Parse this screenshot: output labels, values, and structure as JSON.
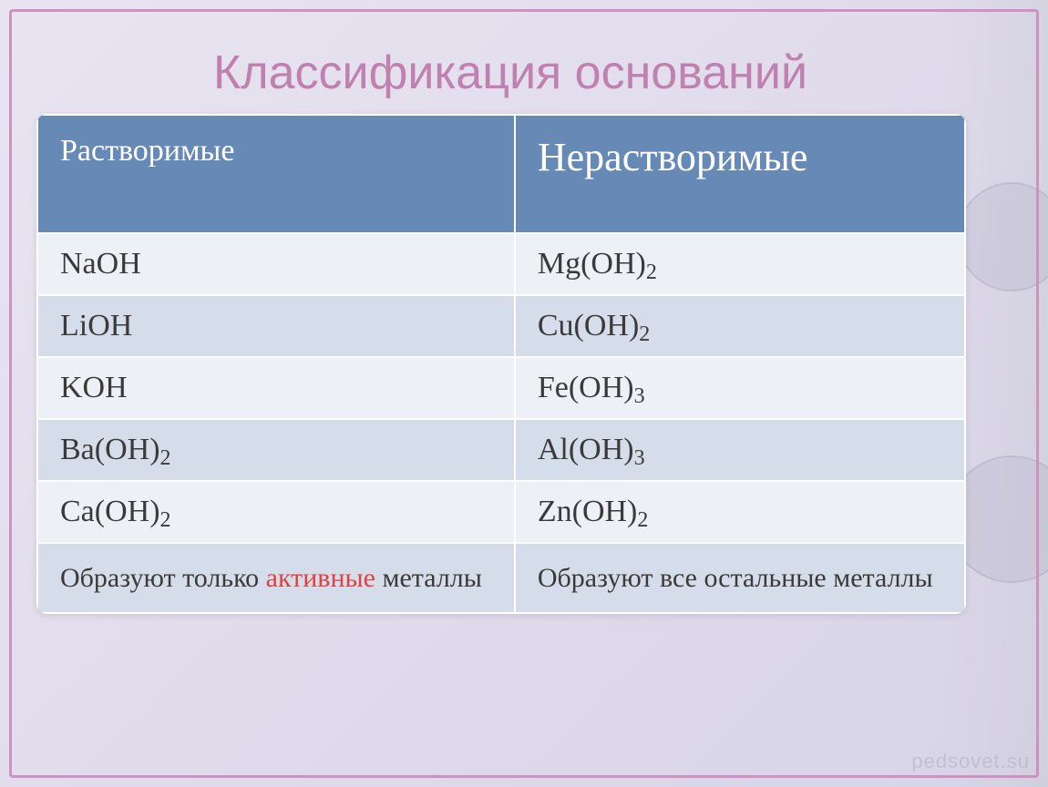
{
  "title": "Классификация оснований",
  "headers": {
    "soluble": "Растворимые",
    "insoluble": "Нерастворимые"
  },
  "rows": [
    {
      "left_base": "NaOH",
      "left_sub": "",
      "right_base": "Mg(OH)",
      "right_sub": "2"
    },
    {
      "left_base": "LiOH",
      "left_sub": "",
      "right_base": "Cu(OH)",
      "right_sub": "2"
    },
    {
      "left_base": "KOH",
      "left_sub": "",
      "right_base": "Fe(OH)",
      "right_sub": "3"
    },
    {
      "left_base": "Ba(OH)",
      "left_sub": "2",
      "right_base": "Al(OH)",
      "right_sub": "3"
    },
    {
      "left_base": "Ca(OH)",
      "left_sub": "2",
      "right_base": "Zn(OH)",
      "right_sub": "2"
    }
  ],
  "footer": {
    "left_prefix": "Образуют только ",
    "left_highlight": "активные",
    "left_suffix": " металлы",
    "right": "Образуют все остальные металлы"
  },
  "colors": {
    "header_bg": "#6789b5",
    "row_light": "#edf1f6",
    "row_dark": "#d4dde9",
    "title_color": "#c080b0",
    "highlight_color": "#e04040",
    "frame_color": "#d090c0"
  },
  "watermark": "pedsovet.su"
}
